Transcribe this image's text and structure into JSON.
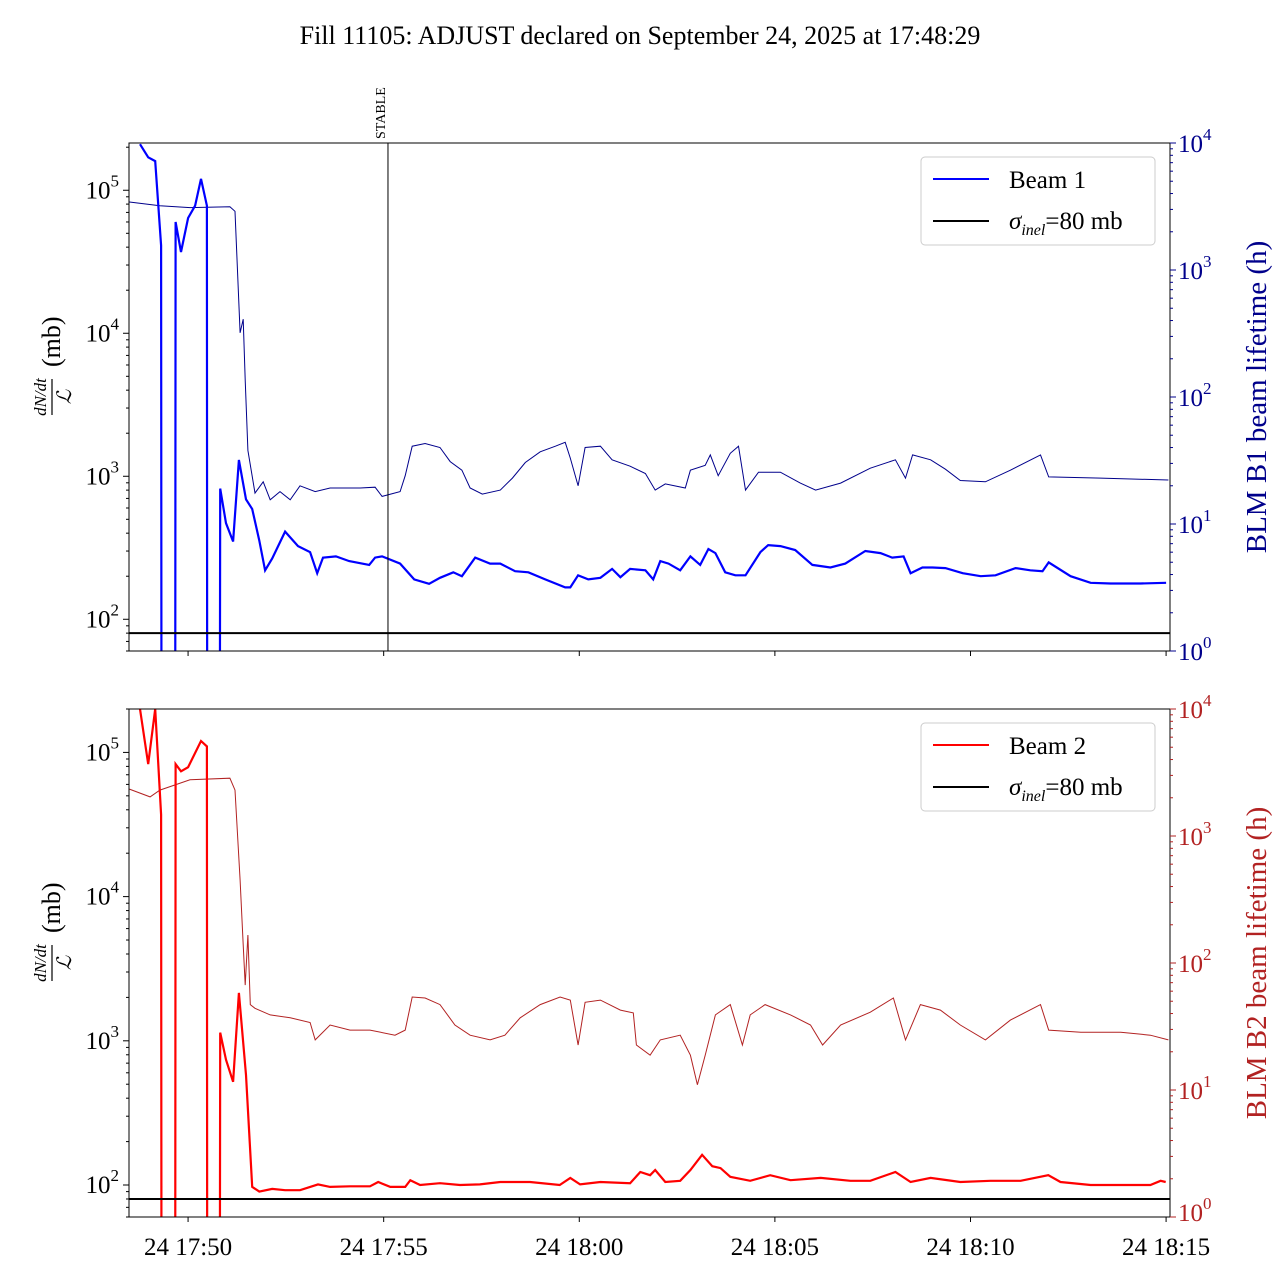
{
  "title": "Fill 11105: ADJUST declared on September 24, 2025 at 17:48:29",
  "stable_label": "STABLE",
  "x_time_unit": "minutes after 17:50:00",
  "x_ticks": [
    {
      "t": 0,
      "label": "24 17:50"
    },
    {
      "t": 5,
      "label": "24 17:55"
    },
    {
      "t": 10,
      "label": "24 18:00"
    },
    {
      "t": 15,
      "label": "24 18:05"
    },
    {
      "t": 20,
      "label": "24 18:10"
    },
    {
      "t": 25,
      "label": "24 18:15"
    }
  ],
  "colors": {
    "beam1": "#0000ff",
    "blm1": "#00008b",
    "beam2": "#ff0000",
    "blm2": "#b22222",
    "ref": "#000000"
  },
  "chart_data": [
    {
      "type": "line",
      "name": "beam1-panel",
      "xlim": [
        -1.51,
        25.1
      ],
      "ylim": [
        60,
        214000
      ],
      "yscale": "log",
      "y2lim": [
        1,
        10000
      ],
      "y2scale": "log",
      "ylabel_num": "dN/dt",
      "ylabel_den": "ℒ",
      "ylabel_unit": "(mb)",
      "y2label": "BLM B1 beam lifetime (h)",
      "stable_t": 5.11,
      "legend": {
        "placement": "top-right",
        "series_label": "Beam 1",
        "ref_label_main": "σ",
        "ref_label_sub": "inel",
        "ref_label_tail": "=80 mb"
      },
      "ref_value": 80,
      "series": {
        "name": "Beam 1",
        "t": [
          -1.23,
          -1.02,
          -0.84,
          -0.69,
          -0.68,
          -0.33,
          -0.32,
          -0.18,
          0,
          0.18,
          0.33,
          0.48,
          0.49,
          0.81,
          0.82,
          0.97,
          1.15,
          1.3,
          1.48,
          1.64,
          1.82,
          1.97,
          2.15,
          2.48,
          2.81,
          3.12,
          3.3,
          3.45,
          3.78,
          4.12,
          4.63,
          4.78,
          4.96,
          5.42,
          5.78,
          6.16,
          6.44,
          6.78,
          7.0,
          7.34,
          7.72,
          7.98,
          8.36,
          8.7,
          9.13,
          9.64,
          9.77,
          9.97,
          10.23,
          10.54,
          10.84,
          11.05,
          11.3,
          11.69,
          11.89,
          12.07,
          12.28,
          12.58,
          12.84,
          13.09,
          13.3,
          13.48,
          13.73,
          13.99,
          14.25,
          14.63,
          14.83,
          15.14,
          15.52,
          15.96,
          16.42,
          16.8,
          17.31,
          17.7,
          18.0,
          18.29,
          18.47,
          18.77,
          19.03,
          19.36,
          19.8,
          20.26,
          20.64,
          21.15,
          21.53,
          21.84,
          22.0,
          22.56,
          23.07,
          23.58,
          24.35,
          25.0
        ],
        "values": [
          210000,
          170000,
          160000,
          41000,
          10,
          10,
          60000,
          37000,
          64000,
          78000,
          120000,
          78000,
          10,
          10,
          820,
          470,
          350,
          1300,
          690,
          590,
          355,
          220,
          266,
          410,
          325,
          295,
          210,
          270,
          275,
          255,
          240,
          270,
          275,
          245,
          190,
          177,
          195,
          213,
          200,
          270,
          245,
          245,
          217,
          213,
          190,
          167,
          167,
          203,
          190,
          195,
          225,
          197,
          225,
          220,
          190,
          255,
          245,
          220,
          275,
          240,
          310,
          290,
          213,
          203,
          203,
          295,
          330,
          325,
          305,
          240,
          230,
          245,
          300,
          290,
          270,
          275,
          210,
          230,
          230,
          228,
          210,
          200,
          203,
          228,
          220,
          217,
          250,
          200,
          180,
          178,
          178,
          180
        ]
      },
      "series2": {
        "name": "BLM B1 beam lifetime",
        "t": [
          -1.5,
          -0.72,
          0.05,
          1.07,
          1.2,
          1.33,
          1.41,
          1.46,
          1.53,
          1.71,
          1.92,
          2.1,
          2.35,
          2.61,
          2.86,
          3.25,
          3.63,
          4.4,
          4.78,
          4.96,
          5.42,
          5.55,
          5.73,
          6.06,
          6.44,
          6.7,
          7.0,
          7.21,
          7.52,
          7.98,
          8.29,
          8.62,
          9.0,
          9.39,
          9.64,
          9.77,
          9.97,
          10.15,
          10.54,
          10.84,
          11.3,
          11.69,
          11.94,
          12.2,
          12.71,
          12.84,
          13.22,
          13.35,
          13.55,
          13.86,
          14.07,
          14.25,
          14.58,
          15.14,
          15.65,
          16.04,
          16.68,
          17.44,
          18.08,
          18.34,
          18.52,
          18.98,
          19.36,
          19.74,
          20.38,
          21.02,
          21.79,
          22.0,
          23.33,
          25.06
        ],
        "values": [
          3430,
          3200,
          3100,
          3150,
          2900,
          320,
          410,
          136,
          38,
          17.5,
          21.5,
          15.5,
          18,
          15.5,
          20,
          18,
          19.2,
          19.2,
          19.5,
          16.5,
          18,
          24,
          41,
          43,
          40,
          31,
          26.5,
          19.2,
          17.2,
          18.5,
          23,
          30.5,
          37,
          41,
          44,
          33,
          20,
          40,
          41,
          32,
          28.5,
          25,
          18.5,
          20.7,
          19.2,
          26.5,
          29,
          35,
          24,
          36,
          41,
          18.5,
          25.6,
          25.6,
          21,
          18.5,
          21,
          27.5,
          32,
          23,
          35,
          32,
          27,
          22,
          21.5,
          26.5,
          35,
          23.5,
          23,
          22.2
        ]
      }
    },
    {
      "type": "line",
      "name": "beam2-panel",
      "xlim": [
        -1.51,
        25.1
      ],
      "ylim": [
        60,
        200000
      ],
      "yscale": "log",
      "y2lim": [
        1,
        10000
      ],
      "y2scale": "log",
      "ylabel_num": "dN/dt",
      "ylabel_den": "ℒ",
      "ylabel_unit": "(mb)",
      "y2label": "BLM B2 beam lifetime (h)",
      "legend": {
        "placement": "top-right",
        "series_label": "Beam 2",
        "ref_label_main": "σ",
        "ref_label_sub": "inel",
        "ref_label_tail": "=80 mb"
      },
      "ref_value": 80,
      "series": {
        "name": "Beam 2",
        "t": [
          -1.23,
          -1.02,
          -0.84,
          -0.69,
          -0.68,
          -0.33,
          -0.32,
          -0.18,
          0,
          0.33,
          0.48,
          0.49,
          0.81,
          0.82,
          0.97,
          1.15,
          1.3,
          1.48,
          1.64,
          1.82,
          2.15,
          2.48,
          2.86,
          3.32,
          3.63,
          4.14,
          4.65,
          4.86,
          5.17,
          5.55,
          5.68,
          5.93,
          6.44,
          6.95,
          7.46,
          7.98,
          8.74,
          9.5,
          9.77,
          10.02,
          10.54,
          11.3,
          11.56,
          11.81,
          11.94,
          12.2,
          12.58,
          12.84,
          13.14,
          13.4,
          13.61,
          13.86,
          14.37,
          14.88,
          15.4,
          16.17,
          16.93,
          17.44,
          18.08,
          18.47,
          18.98,
          19.74,
          20.51,
          21.28,
          21.99,
          22.3,
          23.07,
          23.84,
          24.6,
          24.86,
          24.99
        ],
        "values": [
          200000,
          83000,
          200000,
          37000,
          10,
          10,
          83000,
          74000,
          79000,
          120000,
          110000,
          10,
          10,
          1140,
          740,
          520,
          2150,
          580,
          97,
          90,
          94,
          92,
          92,
          101,
          97,
          98,
          98,
          105,
          97,
          97,
          108,
          100,
          103,
          100,
          101,
          105,
          105,
          100,
          112,
          101,
          105,
          103,
          123,
          117,
          127,
          105,
          107,
          127,
          162,
          135,
          131,
          114,
          107,
          117,
          108,
          112,
          107,
          107,
          123,
          105,
          112,
          105,
          107,
          107,
          117,
          105,
          100,
          100,
          100,
          107,
          105
        ]
      },
      "series2": {
        "name": "BLM B2 beam lifetime",
        "t": [
          -1.5,
          -0.97,
          -0.72,
          0.05,
          1.07,
          1.2,
          1.33,
          1.41,
          1.46,
          1.53,
          1.59,
          1.71,
          2.1,
          2.61,
          3.12,
          3.25,
          3.63,
          4.14,
          4.65,
          5.29,
          5.55,
          5.73,
          6.06,
          6.44,
          6.82,
          7.21,
          7.72,
          8.1,
          8.49,
          9.0,
          9.51,
          9.77,
          9.97,
          10.15,
          10.54,
          11.05,
          11.38,
          11.46,
          11.81,
          12.07,
          12.58,
          12.84,
          13.02,
          13.22,
          13.48,
          13.86,
          14.17,
          14.37,
          14.75,
          15.4,
          15.91,
          16.22,
          16.68,
          17.44,
          18.03,
          18.34,
          18.72,
          19.23,
          19.74,
          20.38,
          21.02,
          21.79,
          22.0,
          22.82,
          23.84,
          24.6,
          25.06
        ],
        "values": [
          2340,
          2030,
          2300,
          2770,
          2850,
          2300,
          450,
          139,
          67,
          166,
          47,
          44,
          39,
          37,
          34,
          24.8,
          32.5,
          29.6,
          29.6,
          27,
          29.6,
          54,
          53,
          47,
          32.5,
          27,
          24.8,
          27,
          37,
          47,
          54,
          51,
          22.6,
          49,
          51,
          42.6,
          40.5,
          22.6,
          18.8,
          24.8,
          27,
          18.8,
          11,
          18.8,
          39,
          47,
          22.6,
          39,
          47,
          39,
          32.5,
          22.6,
          32.5,
          41,
          53,
          24.8,
          47,
          42.6,
          32.5,
          24.8,
          35.5,
          47,
          29.6,
          28.5,
          28.5,
          27,
          24.8
        ]
      }
    }
  ]
}
